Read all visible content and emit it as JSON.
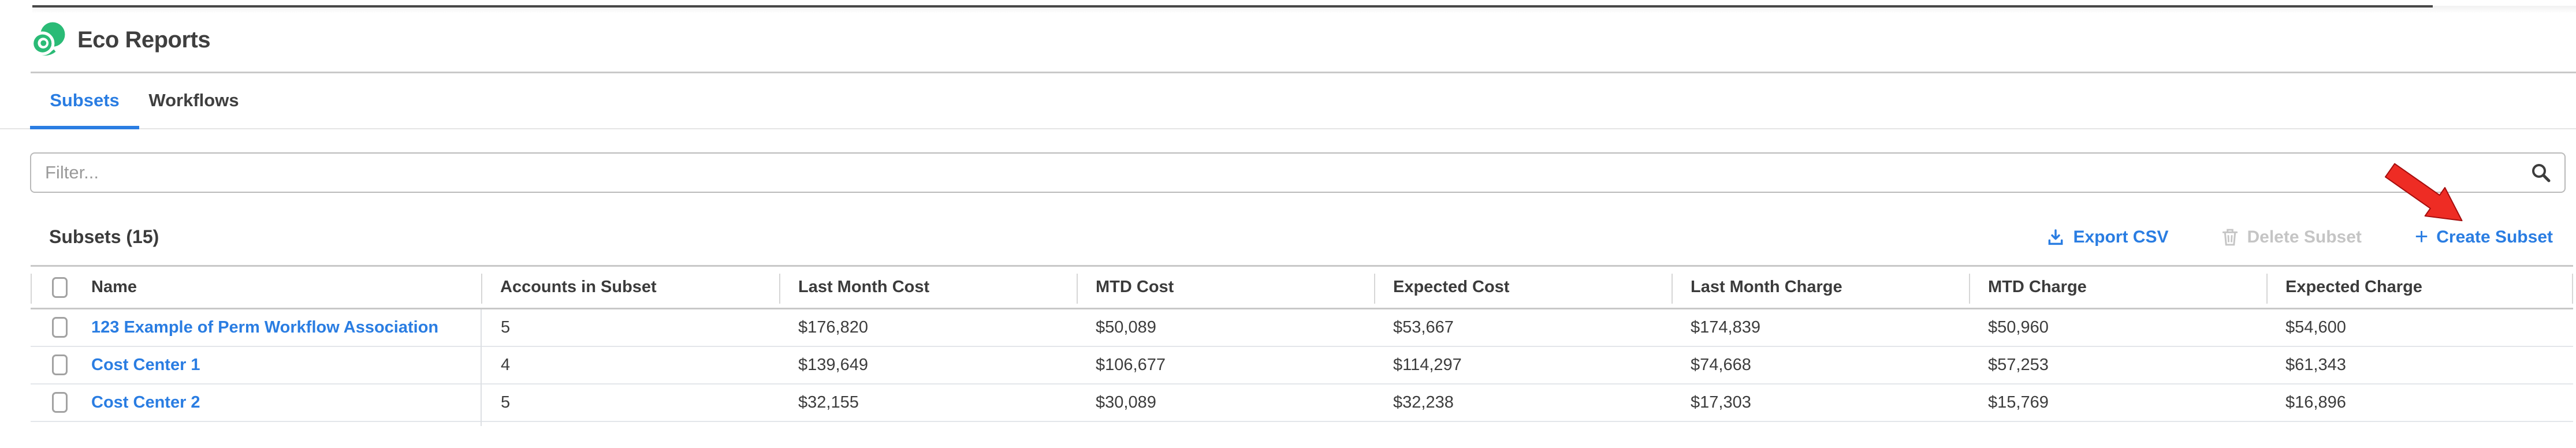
{
  "header": {
    "title": "Eco Reports",
    "logo_icon": "eco-swirl-logo"
  },
  "tabs": [
    {
      "label": "Subsets",
      "active": true
    },
    {
      "label": "Workflows",
      "active": false
    }
  ],
  "filter": {
    "placeholder": "Filter...",
    "value": "",
    "icon": "search-magnifier"
  },
  "section": {
    "title": "Subsets (15)"
  },
  "actions": {
    "export": {
      "label": "Export CSV",
      "icon": "download-icon",
      "enabled": true
    },
    "delete": {
      "label": "Delete Subset",
      "icon": "trash-icon",
      "enabled": false
    },
    "create": {
      "label": "Create Subset",
      "icon": "plus-icon",
      "enabled": true
    }
  },
  "table": {
    "columns": [
      "Name",
      "Accounts in Subset",
      "Last Month Cost",
      "MTD Cost",
      "Expected Cost",
      "Last Month Charge",
      "MTD Charge",
      "Expected Charge"
    ],
    "rows": [
      [
        "123 Example of Perm Workflow Association",
        "5",
        "$176,820",
        "$50,089",
        "$53,667",
        "$174,839",
        "$50,960",
        "$54,600"
      ],
      [
        "Cost Center 1",
        "4",
        "$139,649",
        "$106,677",
        "$114,297",
        "$74,668",
        "$57,253",
        "$61,343"
      ],
      [
        "Cost Center 2",
        "5",
        "$32,155",
        "$30,089",
        "$32,238",
        "$17,303",
        "$15,769",
        "$16,896"
      ]
    ]
  },
  "annotation": {
    "type": "red-arrow",
    "points_to": "Create Subset"
  },
  "colors": {
    "accent_blue": "#2a7de2",
    "brand_green": "#2abb76",
    "disabled_gray": "#c5c5c5",
    "arrow_red": "#ee2c24",
    "text_dark": "#3d3d3d"
  }
}
